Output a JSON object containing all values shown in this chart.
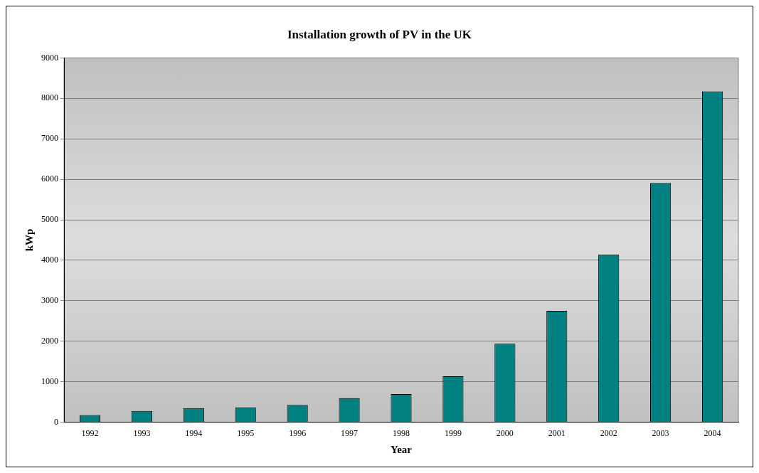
{
  "chart_data": {
    "type": "bar",
    "title": "Installation growth of PV in the UK",
    "xlabel": "Year",
    "ylabel": "kWp",
    "categories": [
      "1992",
      "1993",
      "1994",
      "1995",
      "1996",
      "1997",
      "1998",
      "1999",
      "2000",
      "2001",
      "2002",
      "2003",
      "2004"
    ],
    "values": [
      177,
      278,
      348,
      367,
      430,
      595,
      695,
      1136,
      1938,
      2753,
      4146,
      5911,
      8171
    ],
    "color": "#008080",
    "ylim": [
      0,
      9000
    ],
    "yticks": [
      0,
      1000,
      2000,
      3000,
      4000,
      5000,
      6000,
      7000,
      8000,
      9000
    ],
    "grid": "y",
    "legend": false
  }
}
